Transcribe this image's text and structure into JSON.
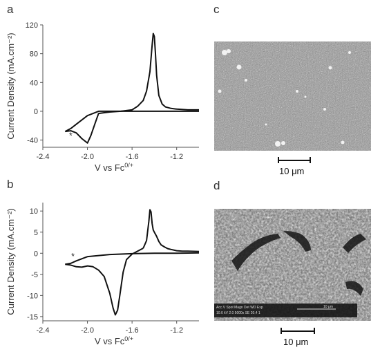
{
  "panels": {
    "a": "a",
    "b": "b",
    "c": "c",
    "d": "d"
  },
  "sem": {
    "c_scalebar": "10 μm",
    "d_scalebar": "10 μm",
    "d_info_left": "Acc.V  Spot Magn   Det  WD  Exp",
    "d_info_left2": "10.0 kV 2.0  5000x   SE  20.4  1",
    "d_info_right": "10 μm"
  },
  "chart_data": [
    {
      "type": "line",
      "panel": "a",
      "ylabel": "Current Density (mA.cm⁻²)",
      "xlabel": "V vs Fc",
      "xlabel_sup": "0/+",
      "xlim": [
        -2.4,
        -1.0
      ],
      "ylim": [
        -50,
        120
      ],
      "xticks": [
        -2.4,
        -2.0,
        -1.6,
        -1.2
      ],
      "yticks": [
        120,
        80,
        40,
        0,
        -40
      ],
      "xtick_labels": [
        "-2.4",
        "-2.0",
        "-1.6",
        "-1.2"
      ],
      "ytick_labels": [
        "120",
        "80",
        "40",
        "0",
        "-40"
      ],
      "annotation": "*",
      "annotation_at": [
        -2.15,
        -38
      ],
      "series": [
        {
          "x": [
            -2.2,
            -2.15,
            -2.1,
            -2.05,
            -2.0,
            -1.97,
            -1.93,
            -1.9,
            -1.85,
            -1.8,
            -1.7,
            -1.6,
            -1.55,
            -1.5,
            -1.47,
            -1.44,
            -1.42,
            -1.41,
            -1.4,
            -1.39,
            -1.38,
            -1.36,
            -1.33,
            -1.3,
            -1.25,
            -1.2,
            -1.1,
            -1.0
          ],
          "y": [
            -28,
            -27,
            -30,
            -38,
            -44,
            -34,
            -16,
            -3,
            -2,
            -1,
            0,
            2,
            7,
            15,
            28,
            55,
            92,
            108,
            104,
            80,
            50,
            22,
            10,
            6,
            4,
            3,
            2,
            2
          ]
        },
        {
          "x": [
            -1.0,
            -1.2,
            -1.4,
            -1.6,
            -1.8,
            -1.9,
            -2.0,
            -2.05,
            -2.1,
            -2.15,
            -2.2
          ],
          "y": [
            0,
            0,
            0,
            0,
            0,
            0,
            -6,
            -12,
            -18,
            -24,
            -28
          ]
        }
      ]
    },
    {
      "type": "line",
      "panel": "b",
      "ylabel": "Current Density (mA.cm⁻²)",
      "xlabel": "V vs Fc",
      "xlabel_sup": "0/+",
      "xlim": [
        -2.4,
        -1.0
      ],
      "ylim": [
        -16,
        12
      ],
      "xticks": [
        -2.4,
        -2.0,
        -1.6,
        -1.2
      ],
      "yticks": [
        10,
        5,
        0,
        -5,
        -10,
        -15
      ],
      "xtick_labels": [
        "-2.4",
        "-2.0",
        "-1.6",
        "-1.2"
      ],
      "ytick_labels": [
        "10",
        "5",
        "0",
        "-5",
        "-10",
        "-15"
      ],
      "annotation": "*",
      "annotation_at": [
        -2.13,
        -1.4
      ],
      "series": [
        {
          "x": [
            -2.2,
            -2.15,
            -2.1,
            -2.05,
            -2.0,
            -1.95,
            -1.9,
            -1.85,
            -1.8,
            -1.77,
            -1.75,
            -1.73,
            -1.71,
            -1.68,
            -1.65,
            -1.6,
            -1.55,
            -1.5
          ],
          "y": [
            -2.6,
            -2.8,
            -3.2,
            -3.3,
            -3.0,
            -3.2,
            -4.0,
            -5.5,
            -9.5,
            -13.0,
            -14.6,
            -13.5,
            -10.0,
            -4.5,
            -1.5,
            -0.2,
            0.5,
            1.2
          ]
        },
        {
          "x": [
            -1.5,
            -1.47,
            -1.45,
            -1.44,
            -1.43,
            -1.42,
            -1.41,
            -1.4,
            -1.38,
            -1.36,
            -1.34,
            -1.31,
            -1.28,
            -1.25,
            -1.2,
            -1.15,
            -1.1,
            -1.0
          ],
          "y": [
            1.2,
            3.0,
            7.5,
            10.3,
            9.8,
            7.0,
            5.5,
            5.0,
            4.0,
            2.8,
            2.0,
            1.5,
            1.1,
            0.9,
            0.6,
            0.5,
            0.5,
            0.4
          ]
        },
        {
          "x": [
            -1.0,
            -1.2,
            -1.4,
            -1.6,
            -1.8,
            -2.0,
            -2.1,
            -2.15,
            -2.2
          ],
          "y": [
            0.1,
            0.0,
            0.0,
            -0.1,
            -0.3,
            -0.8,
            -1.8,
            -2.4,
            -2.6
          ]
        }
      ]
    }
  ]
}
